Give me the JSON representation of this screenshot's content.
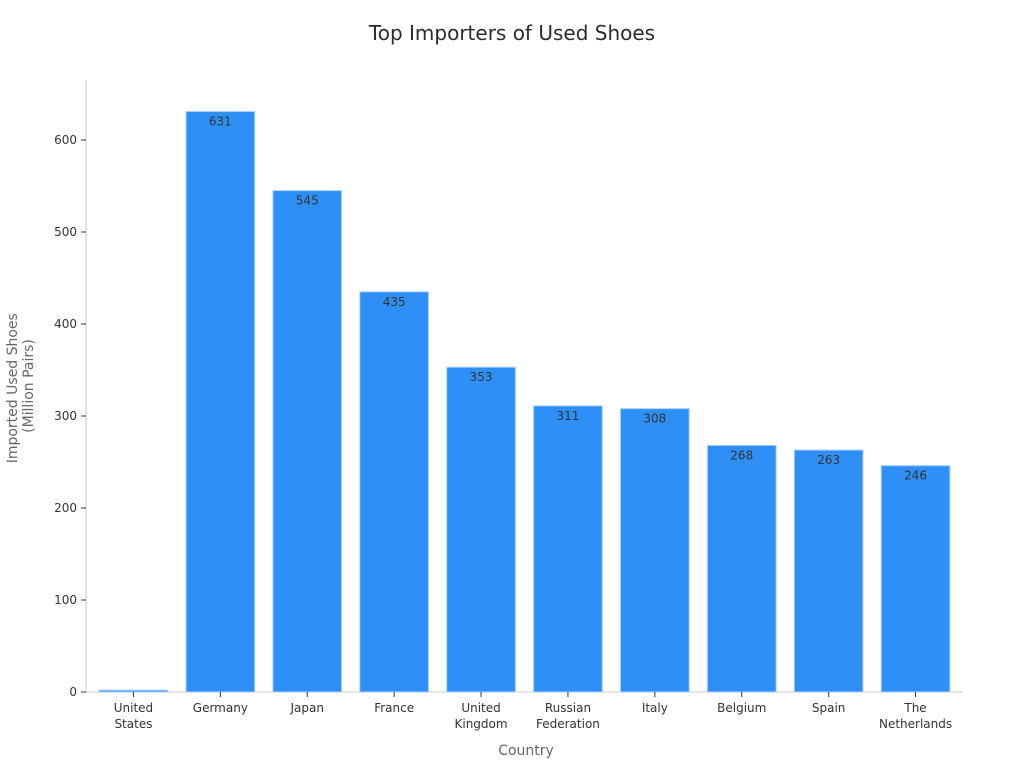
{
  "chart_data": {
    "type": "bar",
    "title": "Top Importers of Used Shoes",
    "xlabel": "Country",
    "ylabel": [
      "Imported Used Shoes",
      "(Million Pairs)"
    ],
    "categories": [
      [
        "United",
        "States"
      ],
      [
        "Germany"
      ],
      [
        "Japan"
      ],
      [
        "France"
      ],
      [
        "United",
        "Kingdom"
      ],
      [
        "Russian",
        "Federation"
      ],
      [
        "Italy"
      ],
      [
        "Belgium"
      ],
      [
        "Spain"
      ],
      [
        "The",
        "Netherlands"
      ]
    ],
    "values": [
      2,
      631,
      545,
      435,
      353,
      311,
      308,
      268,
      263,
      246
    ],
    "data_labels": [
      "",
      "631",
      "545",
      "435",
      "353",
      "311",
      "308",
      "268",
      "263",
      "246"
    ],
    "yticks": [
      0,
      100,
      200,
      300,
      400,
      500,
      600
    ],
    "ylim": [
      0,
      665
    ],
    "grid": false,
    "legend": "none",
    "colors": {
      "bar": "#2e90f7",
      "bar_edge": "#a9cff5",
      "axis": "#cccccc",
      "text": "#333333"
    }
  }
}
